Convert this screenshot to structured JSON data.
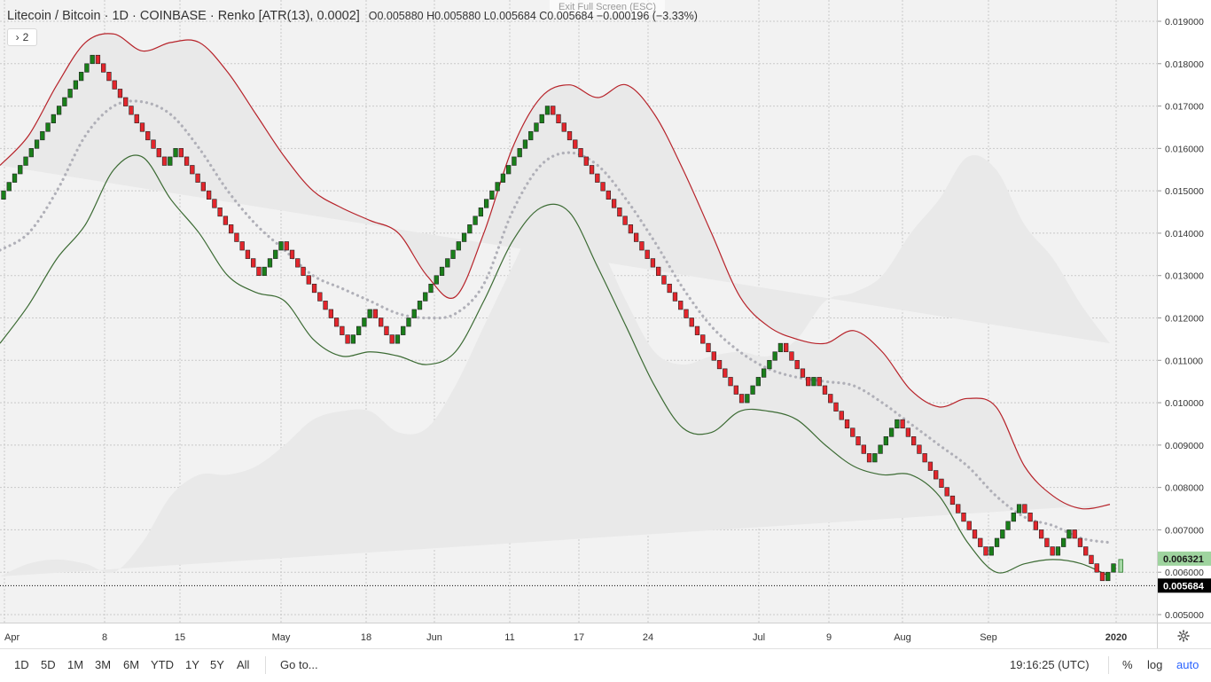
{
  "legend": {
    "symbol": "Litecoin / Bitcoin · 1D · COINBASE · Renko [ATR(13), 0.0002]",
    "ohlc": "O0.005880 H0.005880 L0.005684 C0.005684 −0.000196 (−3.33%)",
    "collapse_count": "2"
  },
  "exit_fullscreen": "Exit Full Screen (ESC)",
  "toolbar": {
    "ranges": [
      "1D",
      "5D",
      "1M",
      "3M",
      "6M",
      "YTD",
      "1Y",
      "5Y",
      "All"
    ],
    "goto": "Go to...",
    "clock": "19:16:25 (UTC)",
    "percent": "%",
    "log": "log",
    "auto": "auto"
  },
  "colors": {
    "up": "#1a7f1a",
    "down": "#e3262c",
    "upper_band": "#b7232a",
    "lower_band": "#3c6b34",
    "basis": "#b0b0b8",
    "band_fill": "#e9e9e9",
    "accent": "#2962ff"
  },
  "chart_data": {
    "type": "renko",
    "title": "Litecoin / Bitcoin",
    "y_ticks": [
      0.019,
      0.018,
      0.017,
      0.016,
      0.015,
      0.014,
      0.013,
      0.012,
      0.011,
      0.01,
      0.009,
      0.008,
      0.007,
      0.006,
      0.005
    ],
    "y_tick_labels": [
      "0.019000",
      "0.018000",
      "0.017000",
      "0.016000",
      "0.015000",
      "0.014000",
      "0.013000",
      "0.012000",
      "0.011000",
      "0.010000",
      "0.009000",
      "0.008000",
      "0.007000",
      "0.006000",
      "0.005000"
    ],
    "x_labels": [
      "Apr",
      "8",
      "15",
      "May",
      "18",
      "Jun",
      "11",
      "17",
      "24",
      "Jul",
      "9",
      "Aug",
      "Sep",
      "2020"
    ],
    "x_label_bold": [
      "2020"
    ],
    "price_markers": [
      {
        "label": "0.006321",
        "value": 0.006321,
        "bg": "#9fd49f",
        "fg": "#1a1a1a"
      },
      {
        "label": "0.005684",
        "value": 0.005684,
        "bg": "#000000",
        "fg": "#ffffff"
      }
    ],
    "last_price_line": 0.005684,
    "segments": [
      {
        "start": 0.0148,
        "end": 0.0182,
        "dir": "up"
      },
      {
        "start": 0.0182,
        "end": 0.0156,
        "dir": "down"
      },
      {
        "start": 0.0156,
        "end": 0.016,
        "dir": "up"
      },
      {
        "start": 0.016,
        "end": 0.013,
        "dir": "down"
      },
      {
        "start": 0.013,
        "end": 0.0138,
        "dir": "up"
      },
      {
        "start": 0.0138,
        "end": 0.0114,
        "dir": "down"
      },
      {
        "start": 0.0114,
        "end": 0.0122,
        "dir": "up"
      },
      {
        "start": 0.0122,
        "end": 0.0114,
        "dir": "down"
      },
      {
        "start": 0.0114,
        "end": 0.017,
        "dir": "up"
      },
      {
        "start": 0.017,
        "end": 0.01,
        "dir": "down"
      },
      {
        "start": 0.01,
        "end": 0.0114,
        "dir": "up"
      },
      {
        "start": 0.0114,
        "end": 0.0104,
        "dir": "down"
      },
      {
        "start": 0.0104,
        "end": 0.0106,
        "dir": "up"
      },
      {
        "start": 0.0106,
        "end": 0.0086,
        "dir": "down"
      },
      {
        "start": 0.0086,
        "end": 0.0096,
        "dir": "up"
      },
      {
        "start": 0.0096,
        "end": 0.0064,
        "dir": "down"
      },
      {
        "start": 0.0064,
        "end": 0.0076,
        "dir": "up"
      },
      {
        "start": 0.0076,
        "end": 0.0064,
        "dir": "down"
      },
      {
        "start": 0.0064,
        "end": 0.007,
        "dir": "up"
      },
      {
        "start": 0.007,
        "end": 0.0058,
        "dir": "down"
      },
      {
        "start": 0.0058,
        "end": 0.0062,
        "dir": "up"
      }
    ],
    "upper_band": [
      0.0156,
      0.0163,
      0.0175,
      0.0185,
      0.0187,
      0.0183,
      0.0185,
      0.0185,
      0.0178,
      0.0168,
      0.0158,
      0.015,
      0.0146,
      0.0143,
      0.014,
      0.013,
      0.0125,
      0.014,
      0.016,
      0.0172,
      0.0175,
      0.0172,
      0.0175,
      0.0168,
      0.0155,
      0.014,
      0.0125,
      0.0118,
      0.0115,
      0.0114,
      0.0117,
      0.0112,
      0.0103,
      0.0099,
      0.0101,
      0.0099,
      0.0085,
      0.0078,
      0.0075,
      0.0076
    ],
    "basis": [
      0.0136,
      0.014,
      0.015,
      0.0163,
      0.017,
      0.0171,
      0.0168,
      0.016,
      0.015,
      0.0142,
      0.0136,
      0.013,
      0.0127,
      0.0124,
      0.0121,
      0.012,
      0.0121,
      0.0128,
      0.0145,
      0.0156,
      0.0159,
      0.0156,
      0.0148,
      0.0138,
      0.0127,
      0.0118,
      0.0112,
      0.0108,
      0.0106,
      0.0105,
      0.0104,
      0.01,
      0.0095,
      0.009,
      0.0085,
      0.0078,
      0.0073,
      0.0071,
      0.0068,
      0.0067
    ],
    "lower_band": [
      0.0114,
      0.0123,
      0.0134,
      0.0142,
      0.0155,
      0.0158,
      0.0148,
      0.014,
      0.013,
      0.0126,
      0.0124,
      0.0115,
      0.0111,
      0.0112,
      0.0111,
      0.0109,
      0.0112,
      0.0124,
      0.0138,
      0.0146,
      0.0145,
      0.0132,
      0.0118,
      0.0104,
      0.0094,
      0.0093,
      0.0098,
      0.0098,
      0.0096,
      0.009,
      0.0085,
      0.0083,
      0.0083,
      0.0078,
      0.0067,
      0.006,
      0.0062,
      0.0063,
      0.0062,
      0.0059
    ]
  }
}
